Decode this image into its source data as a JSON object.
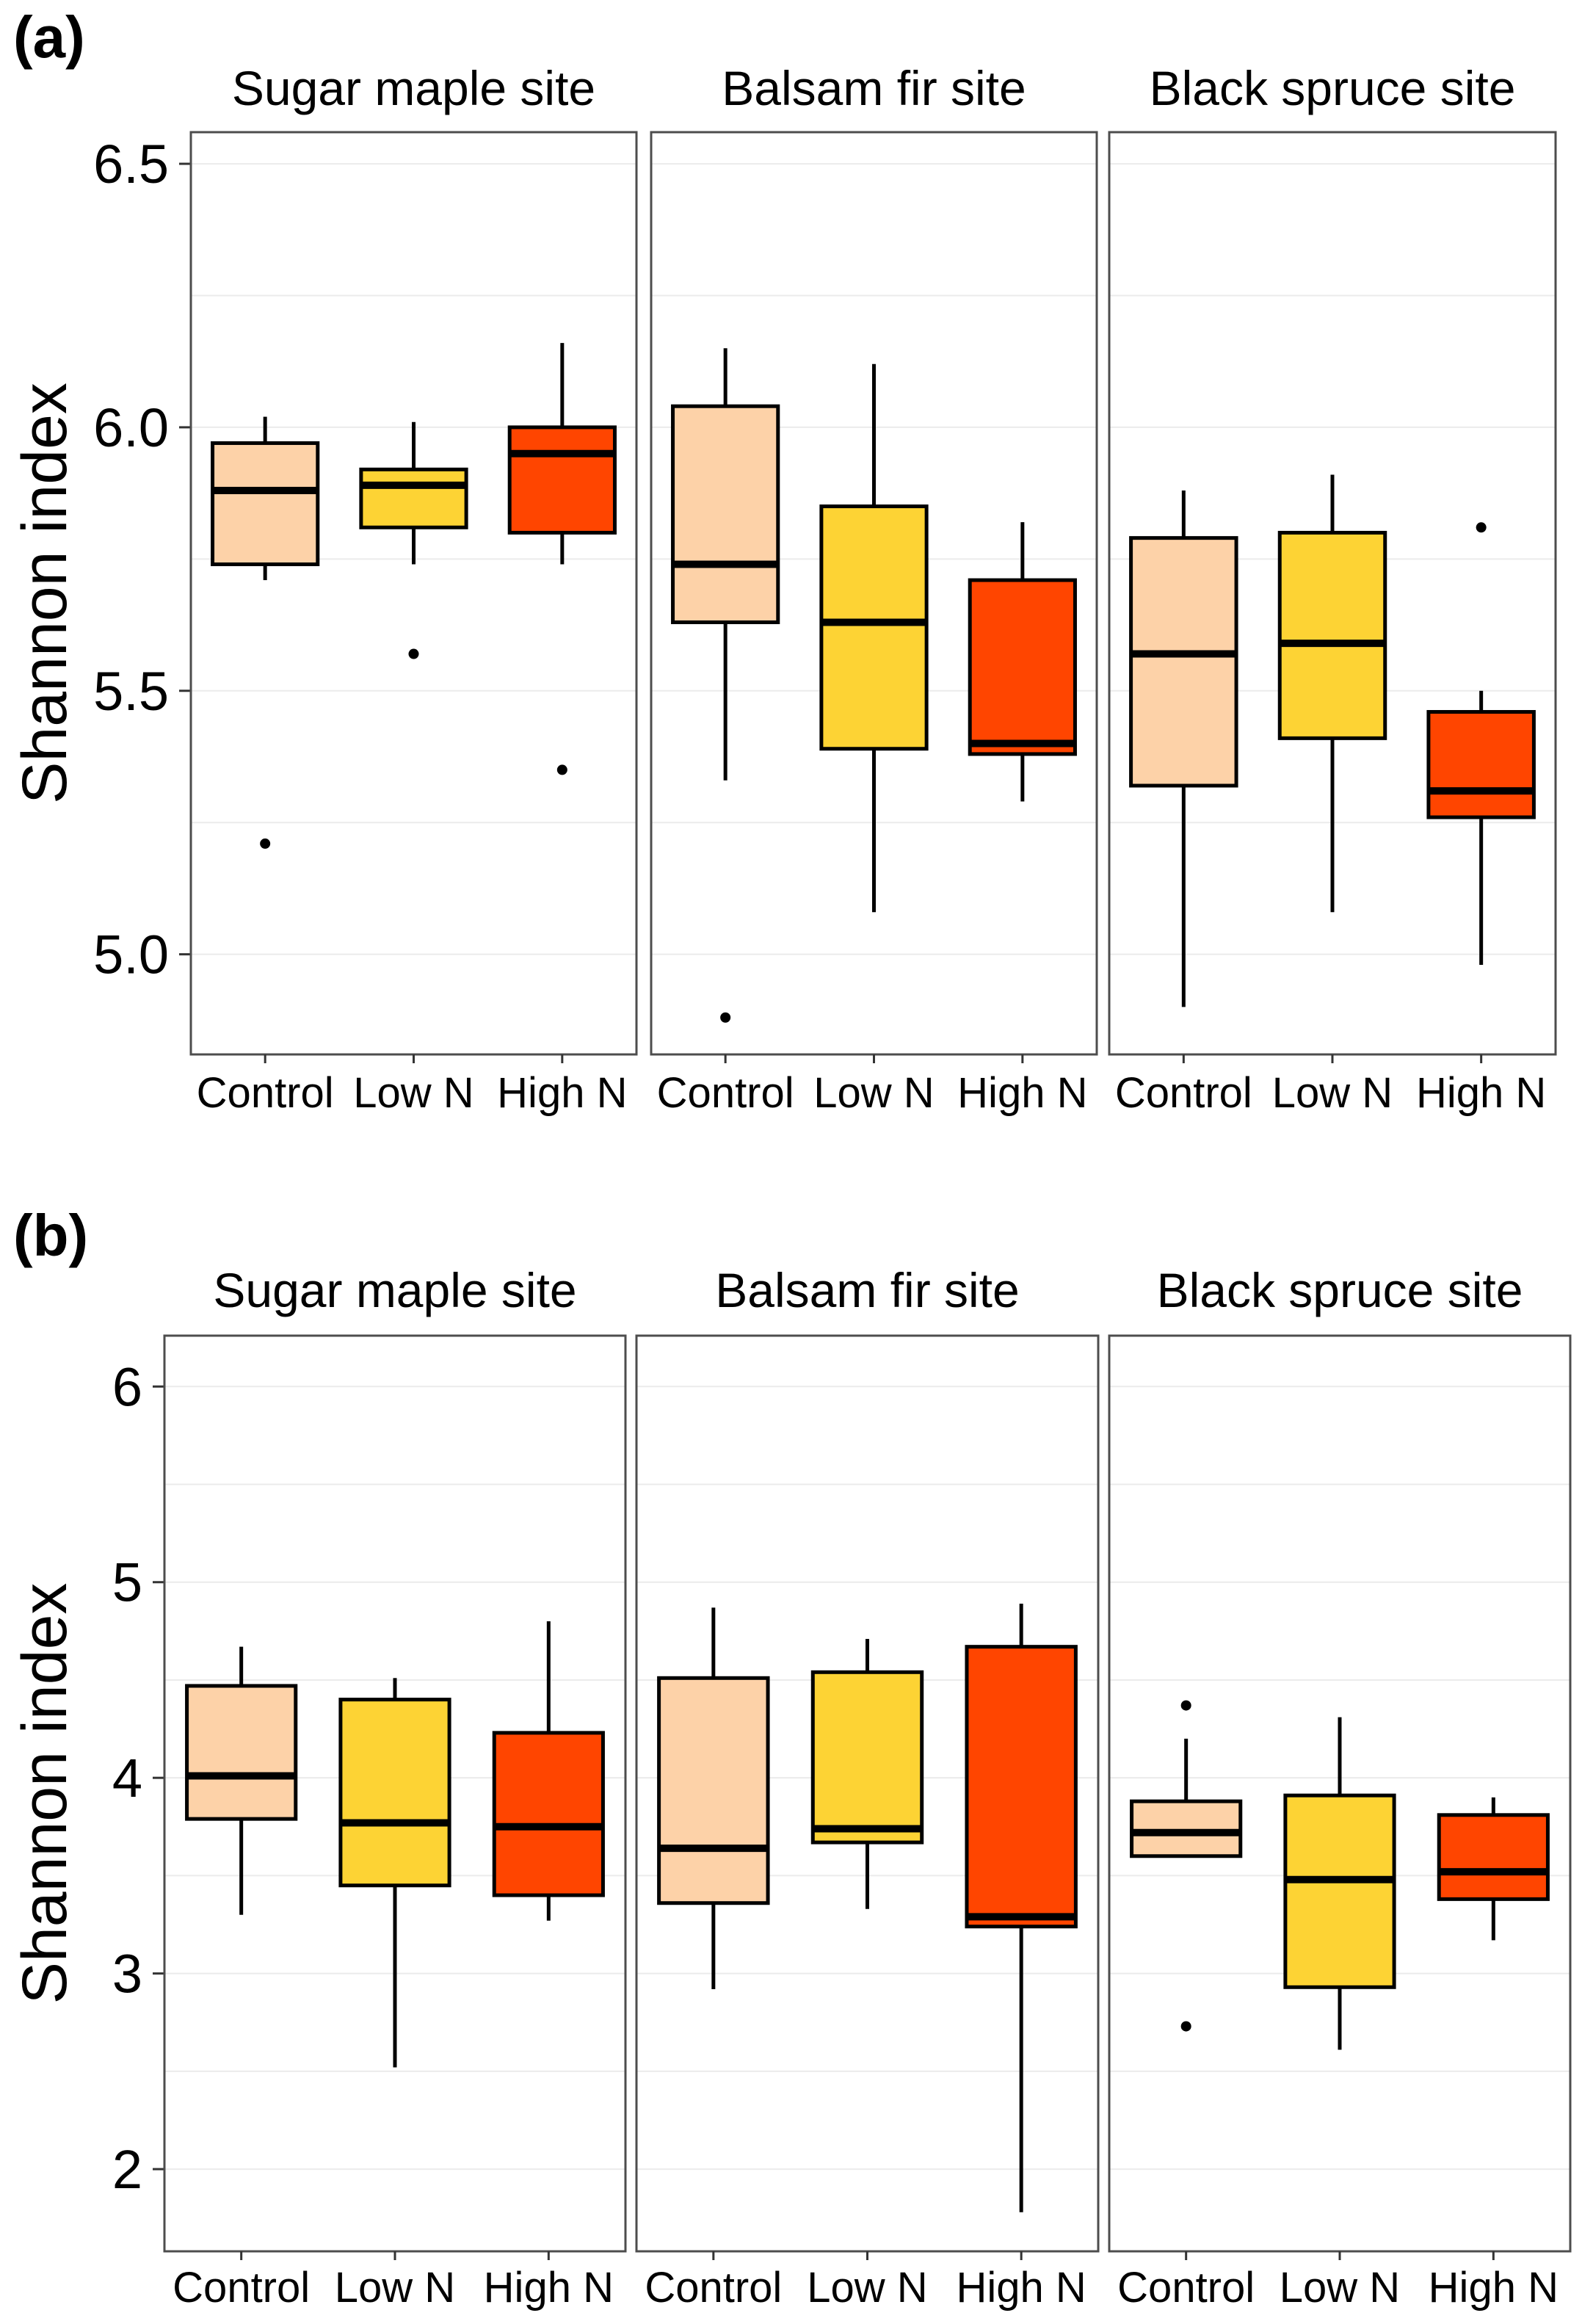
{
  "figure": {
    "colors": {
      "Control": "#FDD2A8",
      "Low N": "#FDD334",
      "High N": "#FF4500",
      "grid": "#EBEBEB",
      "frame": "#4D4D4D",
      "background": "#FFFFFF"
    }
  },
  "chart_data": [
    {
      "type": "boxplot",
      "label": "(a)",
      "ylabel": "Shannon index",
      "ylim": [
        4.81,
        6.56
      ],
      "yticks": [
        5.0,
        5.5,
        6.0,
        6.5
      ],
      "ytick_labels": [
        "5.0",
        "5.5",
        "6.0",
        "6.5"
      ],
      "categories": [
        "Control",
        "Low N",
        "High N"
      ],
      "panels": [
        {
          "title": "Sugar maple site",
          "boxes": [
            {
              "group": "Control",
              "min": 5.71,
              "q1": 5.74,
              "median": 5.88,
              "q3": 5.97,
              "max": 6.02,
              "outliers": [
                5.21
              ]
            },
            {
              "group": "Low N",
              "min": 5.74,
              "q1": 5.81,
              "median": 5.89,
              "q3": 5.92,
              "max": 6.01,
              "outliers": [
                5.57
              ]
            },
            {
              "group": "High N",
              "min": 5.74,
              "q1": 5.8,
              "median": 5.95,
              "q3": 6.0,
              "max": 6.16,
              "outliers": [
                5.35
              ]
            }
          ]
        },
        {
          "title": "Balsam fir site",
          "boxes": [
            {
              "group": "Control",
              "min": 5.33,
              "q1": 5.63,
              "median": 5.74,
              "q3": 6.04,
              "max": 6.15,
              "outliers": [
                4.88
              ]
            },
            {
              "group": "Low N",
              "min": 5.08,
              "q1": 5.39,
              "median": 5.63,
              "q3": 5.85,
              "max": 6.12,
              "outliers": []
            },
            {
              "group": "High N",
              "min": 5.29,
              "q1": 5.38,
              "median": 5.4,
              "q3": 5.71,
              "max": 5.82,
              "outliers": []
            }
          ]
        },
        {
          "title": "Black spruce site",
          "boxes": [
            {
              "group": "Control",
              "min": 4.9,
              "q1": 5.32,
              "median": 5.57,
              "q3": 5.79,
              "max": 5.88,
              "outliers": []
            },
            {
              "group": "Low N",
              "min": 5.08,
              "q1": 5.41,
              "median": 5.59,
              "q3": 5.8,
              "max": 5.91,
              "outliers": []
            },
            {
              "group": "High N",
              "min": 4.98,
              "q1": 5.26,
              "median": 5.31,
              "q3": 5.46,
              "max": 5.5,
              "outliers": [
                5.81
              ]
            }
          ]
        }
      ]
    },
    {
      "type": "boxplot",
      "label": "(b)",
      "ylabel": "Shannon index",
      "ylim": [
        1.58,
        6.26
      ],
      "yticks": [
        2,
        3,
        4,
        5,
        6
      ],
      "ytick_labels": [
        "2",
        "3",
        "4",
        "5",
        "6"
      ],
      "categories": [
        "Control",
        "Low N",
        "High N"
      ],
      "panels": [
        {
          "title": "Sugar maple site",
          "boxes": [
            {
              "group": "Control",
              "min": 3.3,
              "q1": 3.79,
              "median": 4.01,
              "q3": 4.47,
              "max": 4.67,
              "outliers": []
            },
            {
              "group": "Low N",
              "min": 2.52,
              "q1": 3.45,
              "median": 3.77,
              "q3": 4.4,
              "max": 4.51,
              "outliers": []
            },
            {
              "group": "High N",
              "min": 3.27,
              "q1": 3.4,
              "median": 3.75,
              "q3": 4.23,
              "max": 4.8,
              "outliers": []
            }
          ]
        },
        {
          "title": "Balsam fir site",
          "boxes": [
            {
              "group": "Control",
              "min": 2.92,
              "q1": 3.36,
              "median": 3.64,
              "q3": 4.51,
              "max": 4.87,
              "outliers": []
            },
            {
              "group": "Low N",
              "min": 3.33,
              "q1": 3.67,
              "median": 3.74,
              "q3": 4.54,
              "max": 4.71,
              "outliers": []
            },
            {
              "group": "High N",
              "min": 1.78,
              "q1": 3.24,
              "median": 3.29,
              "q3": 4.67,
              "max": 4.89,
              "outliers": []
            }
          ]
        },
        {
          "title": "Black spruce site",
          "boxes": [
            {
              "group": "Control",
              "min": 3.6,
              "q1": 3.6,
              "median": 3.72,
              "q3": 3.88,
              "max": 4.2,
              "outliers": [
                4.37,
                2.73
              ]
            },
            {
              "group": "Low N",
              "min": 2.61,
              "q1": 2.93,
              "median": 3.48,
              "q3": 3.91,
              "max": 4.31,
              "outliers": []
            },
            {
              "group": "High N",
              "min": 3.17,
              "q1": 3.38,
              "median": 3.52,
              "q3": 3.81,
              "max": 3.9,
              "outliers": []
            }
          ]
        }
      ]
    }
  ]
}
